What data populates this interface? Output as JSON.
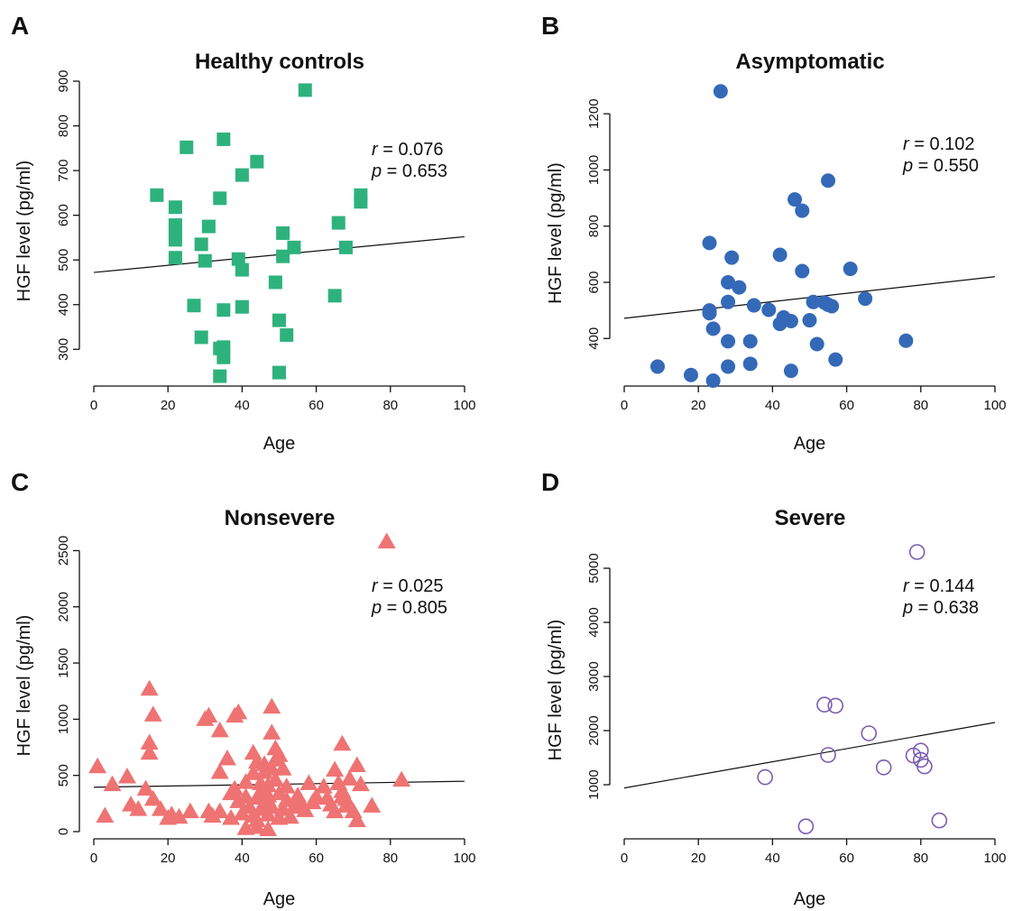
{
  "chart_data": [
    {
      "type": "scatter",
      "panel": "A",
      "title": "Healthy controls",
      "xlabel": "Age",
      "ylabel": "HGF level (pg/ml)",
      "xlim": [
        0,
        100
      ],
      "ylim": [
        230,
        900
      ],
      "xticks": [
        0,
        20,
        40,
        60,
        80,
        100
      ],
      "yticks": [
        300,
        400,
        500,
        600,
        700,
        800,
        900
      ],
      "marker": "square",
      "color": "#2eb27d",
      "r": "r = 0.076",
      "p": "p = 0.653",
      "regression": [
        [
          0,
          472
        ],
        [
          100,
          552
        ]
      ],
      "points": [
        [
          17,
          645
        ],
        [
          22,
          618
        ],
        [
          22,
          578
        ],
        [
          22,
          560
        ],
        [
          22,
          545
        ],
        [
          22,
          505
        ],
        [
          25,
          752
        ],
        [
          27,
          398
        ],
        [
          29,
          535
        ],
        [
          29,
          327
        ],
        [
          30,
          498
        ],
        [
          31,
          575
        ],
        [
          34,
          638
        ],
        [
          34,
          302
        ],
        [
          34,
          240
        ],
        [
          35,
          770
        ],
        [
          35,
          305
        ],
        [
          35,
          282
        ],
        [
          35,
          388
        ],
        [
          39,
          502
        ],
        [
          40,
          690
        ],
        [
          40,
          478
        ],
        [
          40,
          395
        ],
        [
          44,
          720
        ],
        [
          49,
          450
        ],
        [
          50,
          365
        ],
        [
          50,
          248
        ],
        [
          51,
          560
        ],
        [
          51,
          508
        ],
        [
          52,
          332
        ],
        [
          54,
          528
        ],
        [
          57,
          880
        ],
        [
          65,
          420
        ],
        [
          66,
          583
        ],
        [
          68,
          528
        ],
        [
          72,
          645
        ],
        [
          72,
          630
        ]
      ]
    },
    {
      "type": "scatter",
      "panel": "B",
      "title": "Asymptomatic",
      "xlabel": "Age",
      "ylabel": "HGF level (pg/ml)",
      "xlim": [
        0,
        100
      ],
      "ylim": [
        250,
        1300
      ],
      "xticks": [
        0,
        20,
        40,
        60,
        80,
        100
      ],
      "yticks": [
        400,
        600,
        800,
        1000,
        1200
      ],
      "marker": "circle",
      "color": "#3469b8",
      "r": "r = 0.102",
      "p": "p = 0.550",
      "regression": [
        [
          0,
          472
        ],
        [
          100,
          620
        ]
      ],
      "points": [
        [
          9,
          300
        ],
        [
          18,
          270
        ],
        [
          23,
          740
        ],
        [
          23,
          500
        ],
        [
          23,
          490
        ],
        [
          24,
          435
        ],
        [
          24,
          250
        ],
        [
          26,
          1280
        ],
        [
          28,
          600
        ],
        [
          28,
          530
        ],
        [
          28,
          390
        ],
        [
          28,
          300
        ],
        [
          29,
          688
        ],
        [
          31,
          582
        ],
        [
          34,
          390
        ],
        [
          34,
          310
        ],
        [
          35,
          518
        ],
        [
          39,
          502
        ],
        [
          42,
          698
        ],
        [
          42,
          452
        ],
        [
          43,
          475
        ],
        [
          45,
          462
        ],
        [
          45,
          285
        ],
        [
          46,
          895
        ],
        [
          48,
          855
        ],
        [
          48,
          640
        ],
        [
          50,
          465
        ],
        [
          51,
          530
        ],
        [
          52,
          380
        ],
        [
          54,
          528
        ],
        [
          55,
          962
        ],
        [
          55,
          520
        ],
        [
          56,
          515
        ],
        [
          57,
          325
        ],
        [
          61,
          648
        ],
        [
          65,
          542
        ],
        [
          76,
          392
        ]
      ]
    },
    {
      "type": "scatter",
      "panel": "C",
      "title": "Nonsevere",
      "xlabel": "Age",
      "ylabel": "HGF level (pg/ml)",
      "xlim": [
        0,
        100
      ],
      "ylim": [
        0,
        2600
      ],
      "xticks": [
        0,
        20,
        40,
        60,
        80,
        100
      ],
      "yticks": [
        0,
        500,
        1000,
        1500,
        2000,
        2500
      ],
      "marker": "triangle",
      "color": "#ef7373",
      "r": "r = 0.025",
      "p": "p = 0.805",
      "regression": [
        [
          0,
          395
        ],
        [
          100,
          448
        ]
      ],
      "points": [
        [
          1,
          580
        ],
        [
          3,
          140
        ],
        [
          5,
          420
        ],
        [
          9,
          490
        ],
        [
          10,
          240
        ],
        [
          12,
          200
        ],
        [
          14,
          380
        ],
        [
          15,
          1270
        ],
        [
          15,
          790
        ],
        [
          15,
          700
        ],
        [
          16,
          1040
        ],
        [
          16,
          290
        ],
        [
          18,
          200
        ],
        [
          20,
          120
        ],
        [
          21,
          150
        ],
        [
          23,
          130
        ],
        [
          26,
          180
        ],
        [
          30,
          1000
        ],
        [
          31,
          1030
        ],
        [
          31,
          180
        ],
        [
          32,
          140
        ],
        [
          34,
          900
        ],
        [
          34,
          530
        ],
        [
          34,
          180
        ],
        [
          36,
          650
        ],
        [
          37,
          340
        ],
        [
          37,
          120
        ],
        [
          38,
          380
        ],
        [
          38,
          1030
        ],
        [
          39,
          1060
        ],
        [
          39,
          270
        ],
        [
          40,
          160
        ],
        [
          41,
          310
        ],
        [
          41,
          440
        ],
        [
          41,
          30
        ],
        [
          42,
          220
        ],
        [
          43,
          140
        ],
        [
          43,
          520
        ],
        [
          43,
          700
        ],
        [
          44,
          100
        ],
        [
          44,
          300
        ],
        [
          44,
          620
        ],
        [
          44,
          40
        ],
        [
          45,
          200
        ],
        [
          45,
          350
        ],
        [
          45,
          430
        ],
        [
          46,
          250
        ],
        [
          46,
          530
        ],
        [
          46,
          600
        ],
        [
          47,
          320
        ],
        [
          47,
          150
        ],
        [
          47,
          410
        ],
        [
          47,
          20
        ],
        [
          48,
          1110
        ],
        [
          48,
          880
        ],
        [
          48,
          560
        ],
        [
          48,
          220
        ],
        [
          49,
          740
        ],
        [
          49,
          460
        ],
        [
          49,
          640
        ],
        [
          50,
          120
        ],
        [
          50,
          340
        ],
        [
          50,
          680
        ],
        [
          51,
          200
        ],
        [
          51,
          560
        ],
        [
          52,
          400
        ],
        [
          52,
          280
        ],
        [
          53,
          130
        ],
        [
          54,
          220
        ],
        [
          55,
          320
        ],
        [
          56,
          250
        ],
        [
          57,
          190
        ],
        [
          58,
          430
        ],
        [
          59,
          260
        ],
        [
          60,
          310
        ],
        [
          62,
          400
        ],
        [
          63,
          300
        ],
        [
          64,
          240
        ],
        [
          65,
          550
        ],
        [
          65,
          180
        ],
        [
          66,
          430
        ],
        [
          67,
          780
        ],
        [
          67,
          310
        ],
        [
          67,
          360
        ],
        [
          68,
          230
        ],
        [
          68,
          290
        ],
        [
          69,
          470
        ],
        [
          70,
          180
        ],
        [
          71,
          590
        ],
        [
          71,
          100
        ],
        [
          72,
          420
        ],
        [
          75,
          230
        ],
        [
          79,
          2580
        ],
        [
          83,
          460
        ]
      ]
    },
    {
      "type": "scatter",
      "panel": "D",
      "title": "Severe",
      "xlabel": "Age",
      "ylabel": "HGF level (pg/ml)",
      "xlim": [
        0,
        100
      ],
      "ylim": [
        0,
        5500
      ],
      "xticks": [
        0,
        20,
        40,
        60,
        80,
        100
      ],
      "yticks": [
        1000,
        2000,
        3000,
        4000,
        5000
      ],
      "marker": "open-circle",
      "color": "#7a5cb0",
      "r": "r = 0.144",
      "p": "p = 0.638",
      "regression": [
        [
          0,
          940
        ],
        [
          100,
          2150
        ]
      ],
      "points": [
        [
          38,
          1140
        ],
        [
          49,
          230
        ],
        [
          54,
          2480
        ],
        [
          55,
          1550
        ],
        [
          57,
          2460
        ],
        [
          66,
          1950
        ],
        [
          70,
          1320
        ],
        [
          78,
          1540
        ],
        [
          79,
          5300
        ],
        [
          80,
          1630
        ],
        [
          80,
          1460
        ],
        [
          81,
          1340
        ],
        [
          85,
          340
        ]
      ]
    }
  ]
}
